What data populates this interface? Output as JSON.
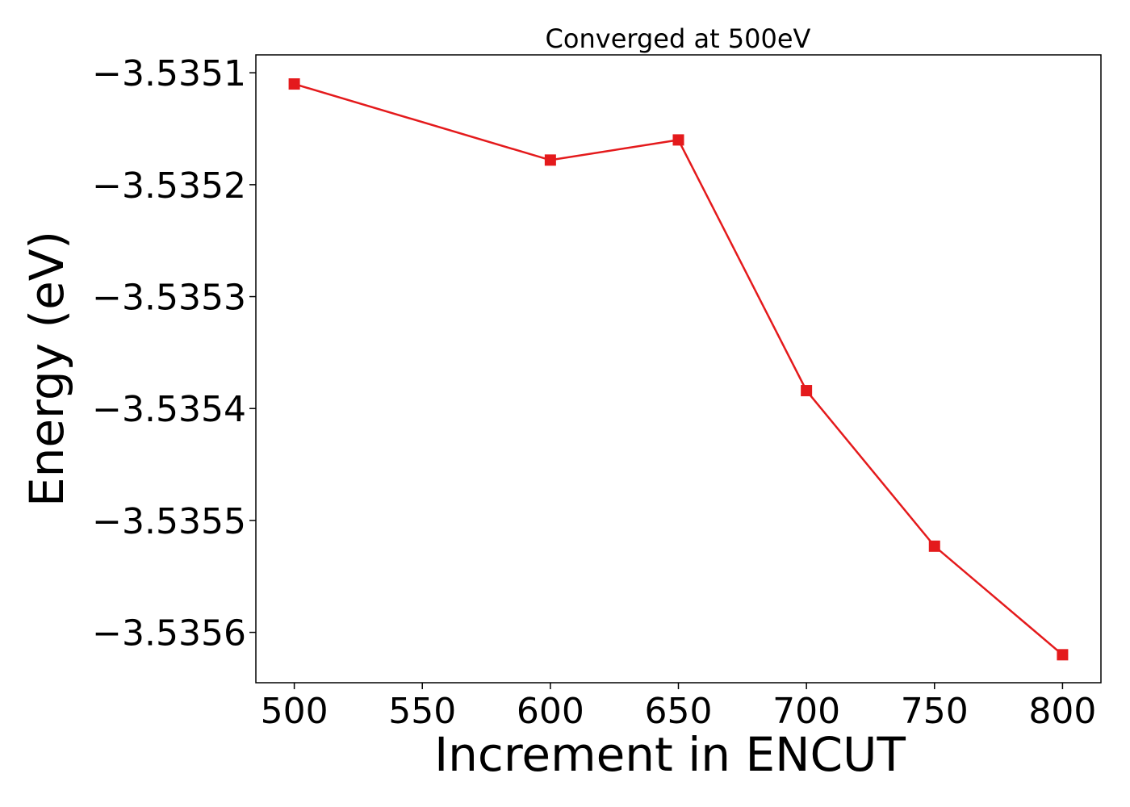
{
  "chart_data": {
    "type": "line",
    "title": "Converged at 500eV",
    "xlabel": "Increment in ENCUT",
    "ylabel": "Energy (eV)",
    "x": [
      500,
      600,
      650,
      700,
      750,
      800
    ],
    "series": [
      {
        "values": [
          -3.53511,
          -3.535178,
          -3.53516,
          -3.535384,
          -3.535523,
          -3.53562
        ]
      }
    ],
    "xticks": [
      500,
      550,
      600,
      650,
      700,
      750,
      800
    ],
    "xtick_labels": [
      "500",
      "550",
      "600",
      "650",
      "700",
      "750",
      "800"
    ],
    "yticks": [
      -3.5351,
      -3.5352,
      -3.5353,
      -3.5354,
      -3.5355,
      -3.5356
    ],
    "ytick_labels": [
      "−3.5351",
      "−3.5352",
      "−3.5353",
      "−3.5354",
      "−3.5355",
      "−3.5356"
    ],
    "xlim": [
      485,
      815
    ],
    "ylim": [
      -3.535645,
      -3.535084
    ],
    "grid": false,
    "line_color": "#e41a1c",
    "marker": "square"
  }
}
